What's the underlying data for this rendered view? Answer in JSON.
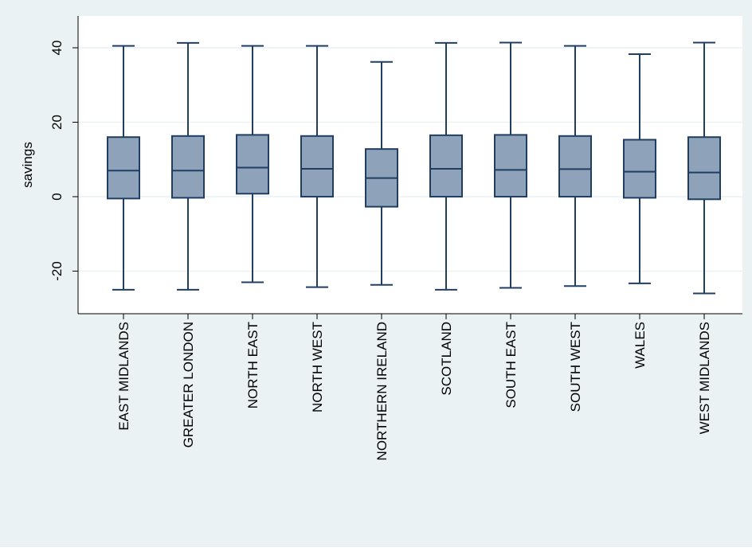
{
  "colors": {
    "outer_background": "#eaf2f3",
    "plot_background": "#ffffff",
    "grid": "#eaf2f3",
    "box_fill": "#8ea2b9",
    "box_stroke": "#1f3e62",
    "axis": "#000000"
  },
  "chart_data": {
    "type": "box",
    "title": "",
    "xlabel": "",
    "ylabel": "savings",
    "ylim": [
      -30,
      46
    ],
    "yticks": [
      -20,
      0,
      20,
      40
    ],
    "ytick_labels": [
      "-20",
      "0",
      "20",
      "40"
    ],
    "grid": true,
    "legend": "none",
    "categories": [
      "EAST MIDLANDS",
      "GREATER LONDON",
      "NORTH EAST",
      "NORTH WEST",
      "NORTHERN IRELAND",
      "SCOTLAND",
      "SOUTH EAST",
      "SOUTH WEST",
      "WALES",
      "WEST MIDLANDS"
    ],
    "boxes": [
      {
        "whisker_low": -25,
        "q1": -0.5,
        "median": 7,
        "q3": 16,
        "whisker_high": 40.5
      },
      {
        "whisker_low": -25,
        "q1": -0.3,
        "median": 7,
        "q3": 16.3,
        "whisker_high": 41.3
      },
      {
        "whisker_low": -23,
        "q1": 0.8,
        "median": 7.8,
        "q3": 16.6,
        "whisker_high": 40.5
      },
      {
        "whisker_low": -24.3,
        "q1": 0,
        "median": 7.5,
        "q3": 16.3,
        "whisker_high": 40.5
      },
      {
        "whisker_low": -23.7,
        "q1": -2.7,
        "median": 5,
        "q3": 12.8,
        "whisker_high": 36.2
      },
      {
        "whisker_low": -25,
        "q1": 0,
        "median": 7.5,
        "q3": 16.5,
        "whisker_high": 41.3
      },
      {
        "whisker_low": -24.5,
        "q1": 0,
        "median": 7.2,
        "q3": 16.6,
        "whisker_high": 41.4
      },
      {
        "whisker_low": -24,
        "q1": 0,
        "median": 7.4,
        "q3": 16.3,
        "whisker_high": 40.5
      },
      {
        "whisker_low": -23.3,
        "q1": -0.3,
        "median": 6.7,
        "q3": 15.3,
        "whisker_high": 38.3
      },
      {
        "whisker_low": -26,
        "q1": -0.7,
        "median": 6.5,
        "q3": 16,
        "whisker_high": 41.4
      }
    ]
  }
}
